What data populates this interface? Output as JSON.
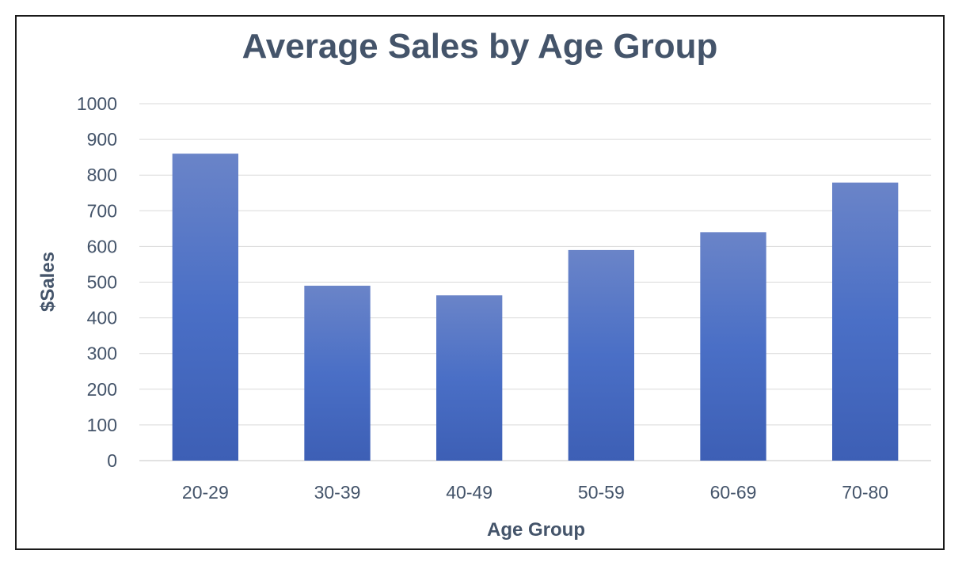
{
  "chart_data": {
    "type": "bar",
    "title": "Average Sales by Age Group",
    "xlabel": "Age Group",
    "ylabel": "$Sales",
    "categories": [
      "20-29",
      "30-39",
      "40-49",
      "50-59",
      "60-69",
      "70-80"
    ],
    "values": [
      860,
      490,
      463,
      590,
      640,
      779
    ],
    "ylim": [
      0,
      1000
    ],
    "yticks": [
      0,
      100,
      200,
      300,
      400,
      500,
      600,
      700,
      800,
      900,
      1000
    ],
    "grid": true,
    "legend": "none",
    "colors": {
      "bar_top": "#6a84c8",
      "bar_mid": "#4a6fc6",
      "bar_bottom": "#3d5fb5",
      "text": "#44546a",
      "grid": "#d9d9d9"
    }
  }
}
